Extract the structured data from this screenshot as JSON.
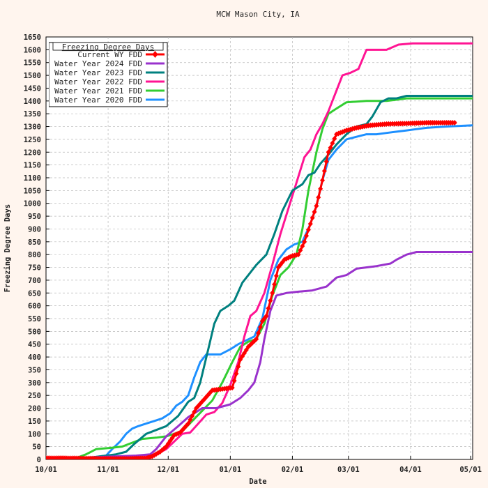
{
  "chart_data": {
    "type": "line",
    "title": "MCW Mason City, IA",
    "xlabel": "Date",
    "ylabel": "Freezing Degree Days",
    "legend_title": "Freezing Degree Days",
    "legend_position": "top-left",
    "grid": true,
    "xlim": [
      0,
      213
    ],
    "ylim": [
      0,
      1650
    ],
    "x_ticks": [
      {
        "day": 0,
        "label": "10/01"
      },
      {
        "day": 31,
        "label": "11/01"
      },
      {
        "day": 61,
        "label": "12/01"
      },
      {
        "day": 92,
        "label": "01/01"
      },
      {
        "day": 123,
        "label": "02/01"
      },
      {
        "day": 151,
        "label": "03/01"
      },
      {
        "day": 182,
        "label": "04/01"
      },
      {
        "day": 212,
        "label": "05/01"
      }
    ],
    "y_ticks": [
      0,
      50,
      100,
      150,
      200,
      250,
      300,
      350,
      400,
      450,
      500,
      550,
      600,
      650,
      700,
      750,
      800,
      850,
      900,
      950,
      1000,
      1050,
      1100,
      1150,
      1200,
      1250,
      1300,
      1350,
      1400,
      1450,
      1500,
      1550,
      1600,
      1650
    ],
    "x_note": "x values are days since 10/01 of the water year",
    "series": [
      {
        "name": "Current WY FDD",
        "color": "#ff0000",
        "marker": "diamond",
        "points": [
          [
            0,
            5
          ],
          [
            10,
            5
          ],
          [
            20,
            4
          ],
          [
            30,
            3
          ],
          [
            40,
            3
          ],
          [
            50,
            5
          ],
          [
            53,
            12
          ],
          [
            57,
            30
          ],
          [
            60,
            50
          ],
          [
            64,
            95
          ],
          [
            67,
            105
          ],
          [
            71,
            140
          ],
          [
            75,
            200
          ],
          [
            79,
            235
          ],
          [
            83,
            270
          ],
          [
            88,
            275
          ],
          [
            93,
            280
          ],
          [
            97,
            390
          ],
          [
            101,
            440
          ],
          [
            105,
            470
          ],
          [
            108,
            540
          ],
          [
            110,
            560
          ],
          [
            113,
            650
          ],
          [
            116,
            750
          ],
          [
            119,
            780
          ],
          [
            123,
            795
          ],
          [
            126,
            800
          ],
          [
            129,
            850
          ],
          [
            132,
            920
          ],
          [
            135,
            990
          ],
          [
            138,
            1090
          ],
          [
            141,
            1200
          ],
          [
            145,
            1270
          ],
          [
            150,
            1285
          ],
          [
            155,
            1295
          ],
          [
            162,
            1305
          ],
          [
            170,
            1310
          ],
          [
            180,
            1312
          ],
          [
            190,
            1315
          ],
          [
            200,
            1315
          ],
          [
            205,
            1315
          ]
        ]
      },
      {
        "name": "Water Year 2024 FDD",
        "color": "#9932cc",
        "marker": "none",
        "points": [
          [
            0,
            0
          ],
          [
            30,
            10
          ],
          [
            45,
            15
          ],
          [
            52,
            20
          ],
          [
            55,
            40
          ],
          [
            60,
            90
          ],
          [
            66,
            130
          ],
          [
            71,
            165
          ],
          [
            78,
            200
          ],
          [
            85,
            200
          ],
          [
            92,
            215
          ],
          [
            97,
            240
          ],
          [
            101,
            270
          ],
          [
            104,
            300
          ],
          [
            107,
            380
          ],
          [
            109,
            470
          ],
          [
            112,
            580
          ],
          [
            115,
            640
          ],
          [
            120,
            650
          ],
          [
            126,
            655
          ],
          [
            133,
            660
          ],
          [
            140,
            675
          ],
          [
            145,
            710
          ],
          [
            150,
            720
          ],
          [
            155,
            745
          ],
          [
            165,
            755
          ],
          [
            172,
            765
          ],
          [
            175,
            780
          ],
          [
            180,
            800
          ],
          [
            185,
            810
          ],
          [
            200,
            810
          ],
          [
            213,
            810
          ]
        ]
      },
      {
        "name": "Water Year 2023 FDD",
        "color": "#00807f",
        "marker": "none",
        "points": [
          [
            0,
            0
          ],
          [
            20,
            5
          ],
          [
            35,
            20
          ],
          [
            40,
            30
          ],
          [
            44,
            60
          ],
          [
            50,
            100
          ],
          [
            55,
            115
          ],
          [
            60,
            130
          ],
          [
            66,
            170
          ],
          [
            71,
            225
          ],
          [
            74,
            240
          ],
          [
            77,
            300
          ],
          [
            81,
            430
          ],
          [
            84,
            530
          ],
          [
            87,
            580
          ],
          [
            91,
            600
          ],
          [
            94,
            620
          ],
          [
            98,
            690
          ],
          [
            102,
            730
          ],
          [
            105,
            760
          ],
          [
            110,
            800
          ],
          [
            114,
            880
          ],
          [
            118,
            970
          ],
          [
            123,
            1050
          ],
          [
            128,
            1075
          ],
          [
            131,
            1110
          ],
          [
            134,
            1120
          ],
          [
            137,
            1155
          ],
          [
            141,
            1190
          ],
          [
            145,
            1230
          ],
          [
            150,
            1270
          ],
          [
            155,
            1300
          ],
          [
            160,
            1310
          ],
          [
            163,
            1340
          ],
          [
            167,
            1395
          ],
          [
            171,
            1410
          ],
          [
            175,
            1410
          ],
          [
            180,
            1420
          ],
          [
            190,
            1420
          ],
          [
            213,
            1420
          ]
        ]
      },
      {
        "name": "Water Year 2022 FDD",
        "color": "#ff1493",
        "marker": "none",
        "points": [
          [
            0,
            0
          ],
          [
            20,
            5
          ],
          [
            40,
            10
          ],
          [
            55,
            20
          ],
          [
            60,
            40
          ],
          [
            64,
            70
          ],
          [
            68,
            100
          ],
          [
            72,
            105
          ],
          [
            76,
            140
          ],
          [
            80,
            175
          ],
          [
            84,
            185
          ],
          [
            88,
            220
          ],
          [
            92,
            290
          ],
          [
            96,
            380
          ],
          [
            99,
            480
          ],
          [
            102,
            560
          ],
          [
            105,
            580
          ],
          [
            109,
            650
          ],
          [
            113,
            760
          ],
          [
            117,
            880
          ],
          [
            121,
            980
          ],
          [
            125,
            1080
          ],
          [
            129,
            1180
          ],
          [
            132,
            1210
          ],
          [
            135,
            1270
          ],
          [
            138,
            1310
          ],
          [
            141,
            1360
          ],
          [
            145,
            1440
          ],
          [
            148,
            1500
          ],
          [
            152,
            1510
          ],
          [
            156,
            1525
          ],
          [
            160,
            1600
          ],
          [
            170,
            1600
          ],
          [
            176,
            1620
          ],
          [
            183,
            1625
          ],
          [
            200,
            1625
          ],
          [
            213,
            1625
          ]
        ]
      },
      {
        "name": "Water Year 2021 FDD",
        "color": "#32cd32",
        "marker": "none",
        "points": [
          [
            0,
            0
          ],
          [
            15,
            5
          ],
          [
            20,
            20
          ],
          [
            25,
            40
          ],
          [
            32,
            45
          ],
          [
            38,
            50
          ],
          [
            43,
            65
          ],
          [
            48,
            80
          ],
          [
            55,
            85
          ],
          [
            60,
            90
          ],
          [
            64,
            100
          ],
          [
            68,
            110
          ],
          [
            73,
            150
          ],
          [
            78,
            190
          ],
          [
            83,
            230
          ],
          [
            88,
            300
          ],
          [
            93,
            380
          ],
          [
            97,
            440
          ],
          [
            101,
            460
          ],
          [
            105,
            470
          ],
          [
            109,
            530
          ],
          [
            113,
            640
          ],
          [
            117,
            720
          ],
          [
            121,
            750
          ],
          [
            125,
            800
          ],
          [
            128,
            900
          ],
          [
            131,
            1050
          ],
          [
            135,
            1200
          ],
          [
            138,
            1290
          ],
          [
            141,
            1350
          ],
          [
            145,
            1370
          ],
          [
            150,
            1395
          ],
          [
            160,
            1400
          ],
          [
            170,
            1400
          ],
          [
            175,
            1405
          ],
          [
            180,
            1410
          ],
          [
            200,
            1410
          ],
          [
            213,
            1410
          ]
        ]
      },
      {
        "name": "Water Year 2020 FDD",
        "color": "#1e90ff",
        "marker": "none",
        "points": [
          [
            0,
            0
          ],
          [
            10,
            0
          ],
          [
            15,
            5
          ],
          [
            20,
            5
          ],
          [
            25,
            10
          ],
          [
            30,
            15
          ],
          [
            33,
            40
          ],
          [
            37,
            70
          ],
          [
            40,
            100
          ],
          [
            43,
            120
          ],
          [
            46,
            130
          ],
          [
            50,
            140
          ],
          [
            54,
            150
          ],
          [
            58,
            160
          ],
          [
            62,
            180
          ],
          [
            65,
            210
          ],
          [
            68,
            225
          ],
          [
            71,
            250
          ],
          [
            74,
            320
          ],
          [
            77,
            380
          ],
          [
            80,
            410
          ],
          [
            87,
            410
          ],
          [
            92,
            430
          ],
          [
            96,
            450
          ],
          [
            100,
            465
          ],
          [
            104,
            480
          ],
          [
            108,
            550
          ],
          [
            112,
            700
          ],
          [
            116,
            780
          ],
          [
            120,
            820
          ],
          [
            124,
            840
          ],
          [
            128,
            850
          ],
          [
            132,
            920
          ],
          [
            135,
            990
          ],
          [
            138,
            1090
          ],
          [
            141,
            1170
          ],
          [
            145,
            1210
          ],
          [
            150,
            1250
          ],
          [
            155,
            1260
          ],
          [
            160,
            1270
          ],
          [
            165,
            1270
          ],
          [
            170,
            1275
          ],
          [
            175,
            1280
          ],
          [
            180,
            1285
          ],
          [
            185,
            1290
          ],
          [
            190,
            1295
          ],
          [
            200,
            1300
          ],
          [
            213,
            1305
          ]
        ]
      }
    ]
  }
}
